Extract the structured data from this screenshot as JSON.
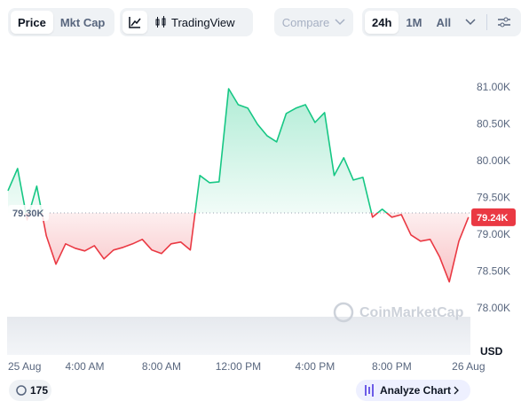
{
  "toolbar": {
    "tabs": [
      "Price",
      "Mkt Cap"
    ],
    "chart_style": "TradingView",
    "compare": "Compare",
    "ranges": [
      "24h",
      "1M",
      "All"
    ]
  },
  "chart_data": {
    "type": "line",
    "x": [
      0,
      0.5,
      1,
      1.5,
      2,
      2.5,
      3,
      3.5,
      4,
      4.5,
      5,
      5.5,
      6,
      6.5,
      7,
      7.5,
      8,
      8.5,
      9,
      9.5,
      10,
      10.5,
      11,
      11.5,
      12,
      12.5,
      13,
      13.5,
      14,
      14.5,
      15,
      15.5,
      16,
      16.5,
      17,
      17.5,
      18,
      18.5,
      19,
      19.5,
      20,
      20.5,
      21,
      21.5,
      22,
      22.5,
      23,
      23.5,
      24
    ],
    "values": [
      79602,
      79904,
      79205,
      79663,
      78988,
      78602,
      78880,
      78819,
      78783,
      78855,
      78675,
      78795,
      78831,
      78880,
      78940,
      78795,
      78747,
      78880,
      78904,
      78795,
      79808,
      79711,
      79723,
      80988,
      80771,
      80723,
      80506,
      80350,
      80265,
      80651,
      80723,
      80771,
      80530,
      80663,
      79808,
      80049,
      79747,
      79783,
      79241,
      79350,
      79241,
      79277,
      79000,
      78916,
      78940,
      78699,
      78362,
      78916,
      79241
    ],
    "xlim": [
      0,
      24.1
    ],
    "ylim": [
      77370,
      81470
    ],
    "xticks": [
      {
        "value": 0,
        "label": "25 Aug"
      },
      {
        "value": 4,
        "label": "4:00 AM"
      },
      {
        "value": 8,
        "label": "8:00 AM"
      },
      {
        "value": 12,
        "label": "12:00 PM"
      },
      {
        "value": 16,
        "label": "4:00 PM"
      },
      {
        "value": 20,
        "label": "8:00 PM"
      },
      {
        "value": 24,
        "label": "26 Aug"
      }
    ],
    "yticks": [
      {
        "value": 78000,
        "label": "78.00K"
      },
      {
        "value": 78500,
        "label": "78.50K"
      },
      {
        "value": 79000,
        "label": "79.00K"
      },
      {
        "value": 79500,
        "label": "79.50K"
      },
      {
        "value": 80000,
        "label": "80.00K"
      },
      {
        "value": 80500,
        "label": "80.50K"
      },
      {
        "value": 81000,
        "label": "81.00K"
      }
    ],
    "baseline": {
      "value": 79300,
      "label": "79.30K"
    },
    "last_price": {
      "value": 79240,
      "label": "79.24K"
    },
    "y_unit": "USD",
    "watermark": "CoinMarketCap",
    "up_color": "#16c784",
    "down_color": "#ea3943",
    "grid": false
  },
  "footer": {
    "badge": "175",
    "button": "Analyze Chart"
  }
}
